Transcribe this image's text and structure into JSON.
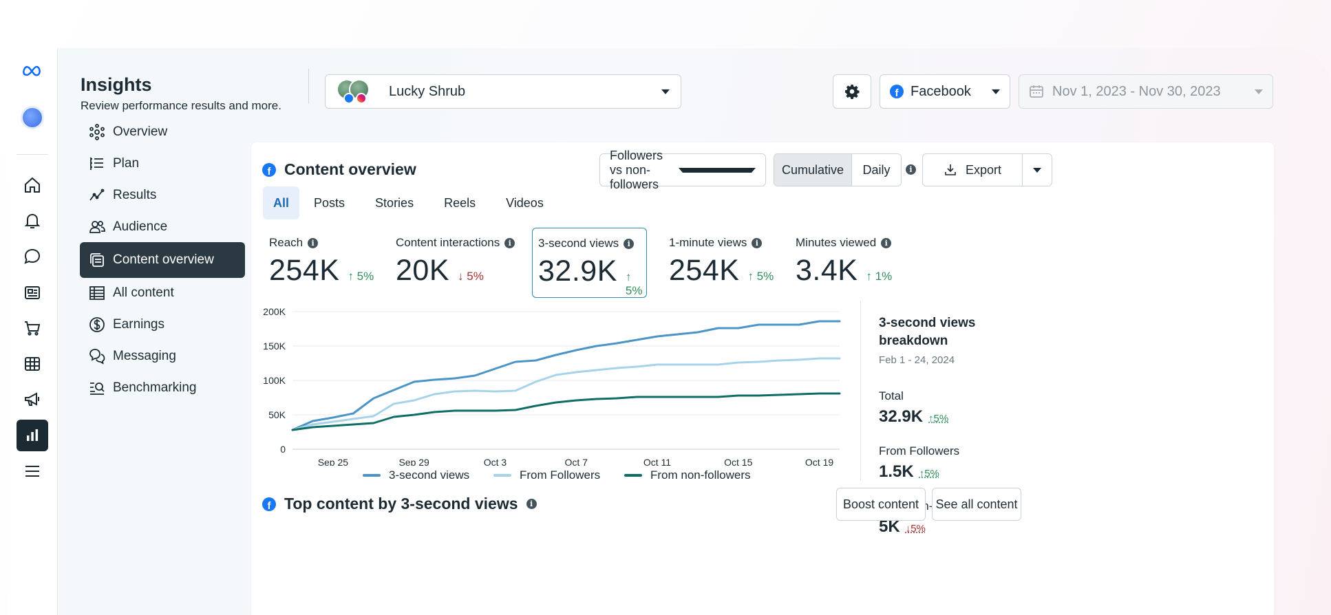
{
  "header": {
    "title": "Insights",
    "subtitle": "Review performance results and more.",
    "account": "Lucky Shrub",
    "platform": "Facebook",
    "date_range": "Nov 1, 2023 - Nov 30, 2023"
  },
  "rail": {
    "icons": [
      "meta-logo-icon",
      "avatar",
      "home-icon",
      "bell-icon",
      "chat-bubble-icon",
      "pages-icon",
      "cart-icon",
      "table-icon",
      "megaphone-icon",
      "bar-chart-icon",
      "menu-icon"
    ],
    "active": "bar-chart-icon"
  },
  "nav": {
    "items": [
      {
        "label": "Overview",
        "icon": "network-icon"
      },
      {
        "label": "Plan",
        "icon": "list-icon"
      },
      {
        "label": "Results",
        "icon": "trend-icon"
      },
      {
        "label": "Audience",
        "icon": "people-icon"
      },
      {
        "label": "Content overview",
        "icon": "content-icon"
      },
      {
        "label": "All content",
        "icon": "grid-icon"
      },
      {
        "label": "Earnings",
        "icon": "dollar-icon"
      },
      {
        "label": "Messaging",
        "icon": "messages-icon"
      },
      {
        "label": "Benchmarking",
        "icon": "benchmark-icon"
      }
    ],
    "active_index": 4
  },
  "content": {
    "title": "Content overview",
    "filter": "Followers vs non-followers",
    "toggle": {
      "cumulative": "Cumulative",
      "daily": "Daily"
    },
    "export": "Export",
    "tabs": [
      "All",
      "Posts",
      "Stories",
      "Reels",
      "Videos"
    ],
    "metrics": [
      {
        "label": "Reach",
        "value": "254K",
        "change": "5%",
        "direction": "up"
      },
      {
        "label": "Content interactions",
        "value": "20K",
        "change": "5%",
        "direction": "down"
      },
      {
        "label": "3-second views",
        "value": "32.9K",
        "change": "5%",
        "direction": "up"
      },
      {
        "label": "1-minute views",
        "value": "254K",
        "change": "5%",
        "direction": "up"
      },
      {
        "label": "Minutes viewed",
        "value": "3.4K",
        "change": "1%",
        "direction": "up"
      }
    ],
    "selected_metric": 2
  },
  "breakdown": {
    "title": "3-second views breakdown",
    "range": "Feb 1 - 24, 2024",
    "rows": [
      {
        "label": "Total",
        "value": "32.9K",
        "change": "5%",
        "direction": "up"
      },
      {
        "label": "From Followers",
        "value": "1.5K",
        "change": "5%",
        "direction": "up"
      },
      {
        "label": "From non-followers",
        "value": "5K",
        "change": "5%",
        "direction": "down"
      }
    ]
  },
  "top_content": {
    "title": "Top content by 3-second views",
    "boost": "Boost content",
    "see_all": "See all content"
  },
  "colors": {
    "accent": "#1877f2",
    "up": "#2e8c57",
    "down": "#a2302e"
  },
  "chart_data": {
    "type": "line",
    "x": [
      "Sep 23",
      "Sep 24",
      "Sep 25",
      "Sep 26",
      "Sep 27",
      "Sep 28",
      "Sep 29",
      "Sep 30",
      "Oct 1",
      "Oct 2",
      "Oct 3",
      "Oct 4",
      "Oct 5",
      "Oct 6",
      "Oct 7",
      "Oct 8",
      "Oct 9",
      "Oct 10",
      "Oct 11",
      "Oct 12",
      "Oct 13",
      "Oct 14",
      "Oct 15",
      "Oct 16",
      "Oct 17",
      "Oct 18",
      "Oct 19",
      "Oct 20"
    ],
    "tick_labels": [
      "Sep 25",
      "Sep 29",
      "Oct 3",
      "Oct 7",
      "Oct 11",
      "Oct 15",
      "Oct 19"
    ],
    "ylim": [
      0,
      200000
    ],
    "yticks": [
      "0",
      "50K",
      "100K",
      "150K",
      "200K"
    ],
    "grid": true,
    "legend": "bottom",
    "series": [
      {
        "name": "3-second views",
        "color": "#4b94c8",
        "values": [
          28000,
          41000,
          46000,
          52000,
          74000,
          86000,
          98000,
          101000,
          103000,
          107000,
          117000,
          127000,
          129000,
          137000,
          144000,
          150000,
          154000,
          159000,
          164000,
          167000,
          170000,
          176000,
          176000,
          181000,
          181000,
          181000,
          186000,
          186000
        ]
      },
      {
        "name": "From Followers",
        "color": "#a7d3ea",
        "values": [
          28000,
          36000,
          40000,
          44000,
          48000,
          66000,
          71000,
          80000,
          84000,
          85000,
          84000,
          85000,
          98000,
          108000,
          112000,
          115000,
          118000,
          120000,
          123000,
          123000,
          123000,
          123000,
          126000,
          127000,
          129000,
          130000,
          132000,
          132000
        ]
      },
      {
        "name": "From non-followers",
        "color": "#0f6e64",
        "values": [
          28000,
          32000,
          34000,
          36000,
          38000,
          47000,
          50000,
          54000,
          56000,
          56000,
          56000,
          57000,
          63000,
          68000,
          71000,
          73000,
          74000,
          76000,
          76000,
          76000,
          76000,
          76000,
          78000,
          78000,
          79000,
          80000,
          81000,
          81000
        ]
      }
    ]
  }
}
